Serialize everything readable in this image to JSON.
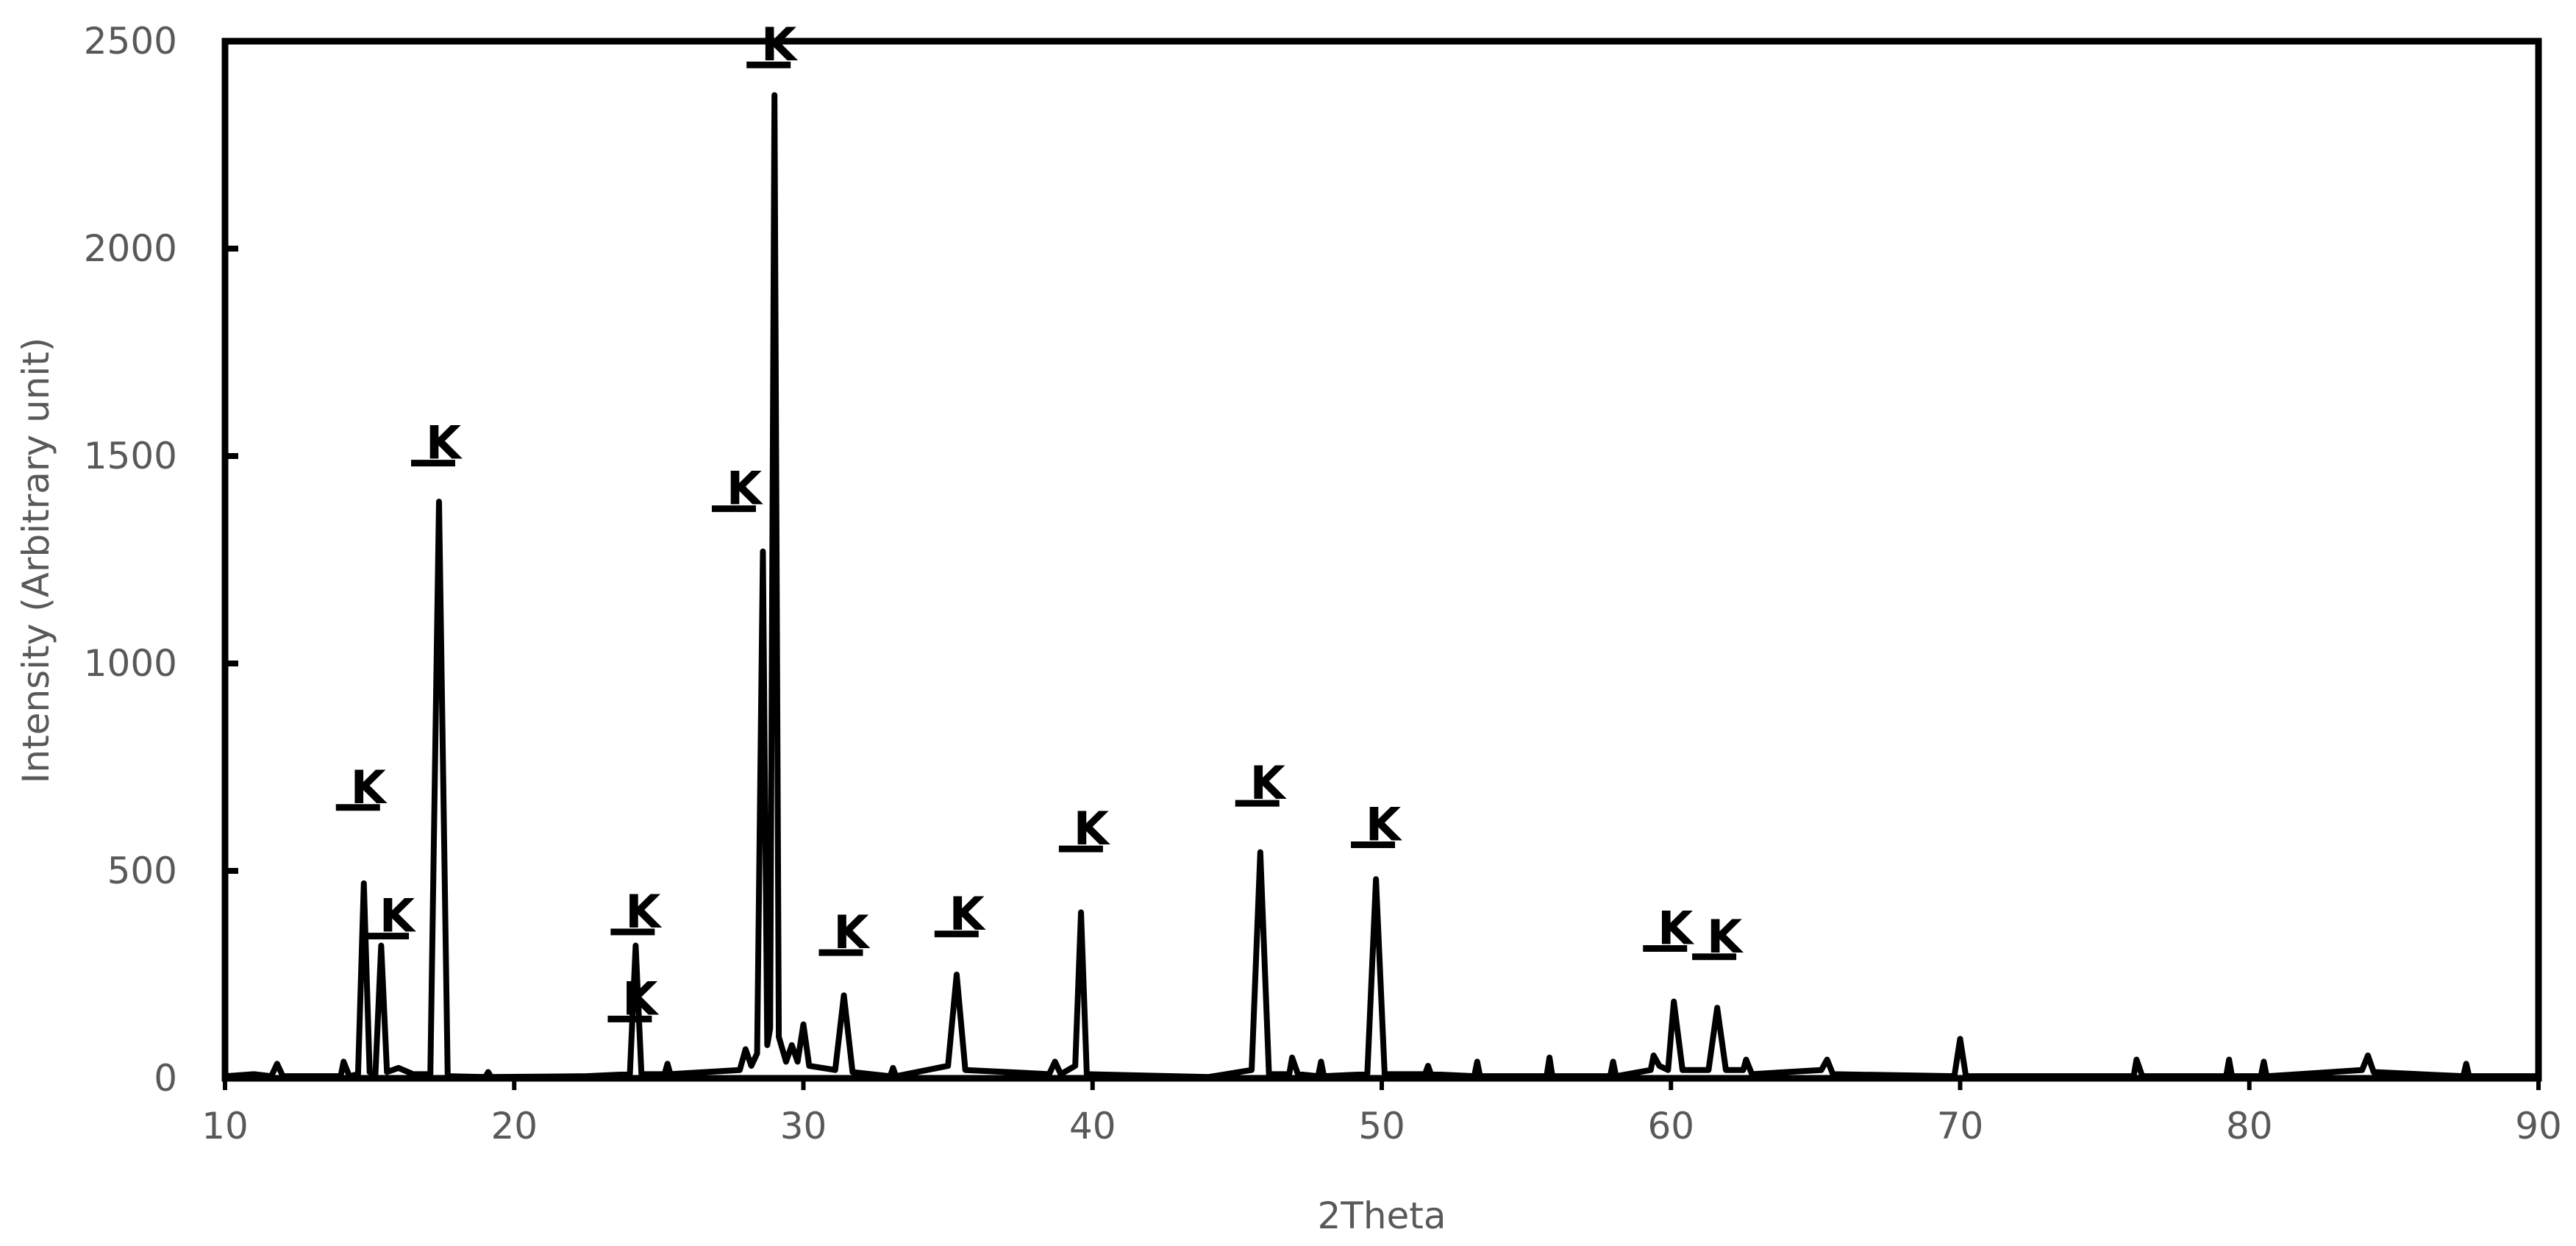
{
  "chart_data": {
    "type": "line",
    "x_label": "2Theta",
    "y_label": "Intensity (Arbitrary unit)",
    "xlim": [
      10,
      90
    ],
    "xticks": [
      10,
      20,
      30,
      40,
      50,
      60,
      70,
      80,
      90
    ],
    "ylim": [
      0,
      2500
    ],
    "yticks": [
      0,
      500,
      1000,
      1500,
      2000,
      2500
    ],
    "grid": false,
    "series": [
      {
        "color": "#000000",
        "x": [
          10,
          11,
          11.6,
          11.8,
          12,
          14,
          14.1,
          14.3,
          14.6,
          14.8,
          15.0,
          15.2,
          15.4,
          15.6,
          16,
          16.5,
          17.1,
          17.4,
          17.7,
          19,
          19.1,
          19.2,
          22.5,
          24.0,
          24.2,
          24.4,
          25.2,
          25.3,
          25.4,
          27.8,
          28.0,
          28.2,
          28.4,
          28.6,
          28.75,
          28.85,
          29.0,
          29.15,
          29.4,
          29.6,
          29.8,
          30.0,
          30.2,
          31.1,
          31.4,
          31.7,
          33,
          33.1,
          33.2,
          35.0,
          35.3,
          35.6,
          38.5,
          38.7,
          38.9,
          39.4,
          39.6,
          39.8,
          44,
          45.5,
          45.8,
          46.1,
          46.8,
          46.9,
          47.1,
          47.8,
          47.9,
          48,
          49.5,
          49.8,
          50.1,
          51.5,
          51.6,
          51.7,
          53.2,
          53.3,
          53.4,
          55.7,
          55.8,
          55.9,
          57.9,
          58,
          58.1,
          59.3,
          59.4,
          59.6,
          59.9,
          60.1,
          60.4,
          61.3,
          61.6,
          61.9,
          62.5,
          62.6,
          62.8,
          65.2,
          65.4,
          65.6,
          69.8,
          70.0,
          70.2,
          76.0,
          76.1,
          76.3,
          79.2,
          79.3,
          79.4,
          80.4,
          80.5,
          80.6,
          83.9,
          84.1,
          84.3,
          87.4,
          87.5,
          87.6,
          90
        ],
        "values": [
          5,
          10,
          5,
          35,
          5,
          5,
          40,
          5,
          10,
          470,
          15,
          10,
          320,
          15,
          25,
          10,
          10,
          1390,
          5,
          3,
          15,
          3,
          5,
          10,
          320,
          10,
          10,
          35,
          10,
          20,
          70,
          30,
          60,
          1270,
          80,
          120,
          2370,
          100,
          40,
          80,
          40,
          130,
          30,
          20,
          200,
          15,
          5,
          25,
          5,
          30,
          250,
          20,
          10,
          40,
          10,
          30,
          400,
          10,
          3,
          20,
          545,
          10,
          10,
          50,
          10,
          5,
          40,
          5,
          10,
          480,
          10,
          10,
          30,
          10,
          5,
          40,
          5,
          5,
          50,
          5,
          5,
          40,
          5,
          20,
          55,
          30,
          20,
          185,
          20,
          20,
          170,
          20,
          20,
          45,
          10,
          20,
          45,
          10,
          5,
          95,
          5,
          5,
          45,
          5,
          5,
          45,
          5,
          5,
          40,
          5,
          20,
          55,
          15,
          5,
          35,
          5,
          5
        ]
      }
    ],
    "annotations": [
      {
        "text": "K",
        "x": 14.8,
        "y": 660
      },
      {
        "text": "K",
        "x": 15.8,
        "y": 350
      },
      {
        "text": "K",
        "x": 17.4,
        "y": 1490
      },
      {
        "text": "K",
        "x": 24.3,
        "y": 360
      },
      {
        "text": "K",
        "x": 24.2,
        "y": 150
      },
      {
        "text": "K",
        "x": 27.8,
        "y": 1380
      },
      {
        "text": "K",
        "x": 29.0,
        "y": 2450
      },
      {
        "text": "K",
        "x": 31.5,
        "y": 310
      },
      {
        "text": "K",
        "x": 35.5,
        "y": 355
      },
      {
        "text": "K",
        "x": 39.8,
        "y": 560
      },
      {
        "text": "K",
        "x": 45.9,
        "y": 670
      },
      {
        "text": "K",
        "x": 49.9,
        "y": 570
      },
      {
        "text": "K",
        "x": 60.0,
        "y": 320
      },
      {
        "text": "K",
        "x": 61.7,
        "y": 300
      }
    ]
  }
}
